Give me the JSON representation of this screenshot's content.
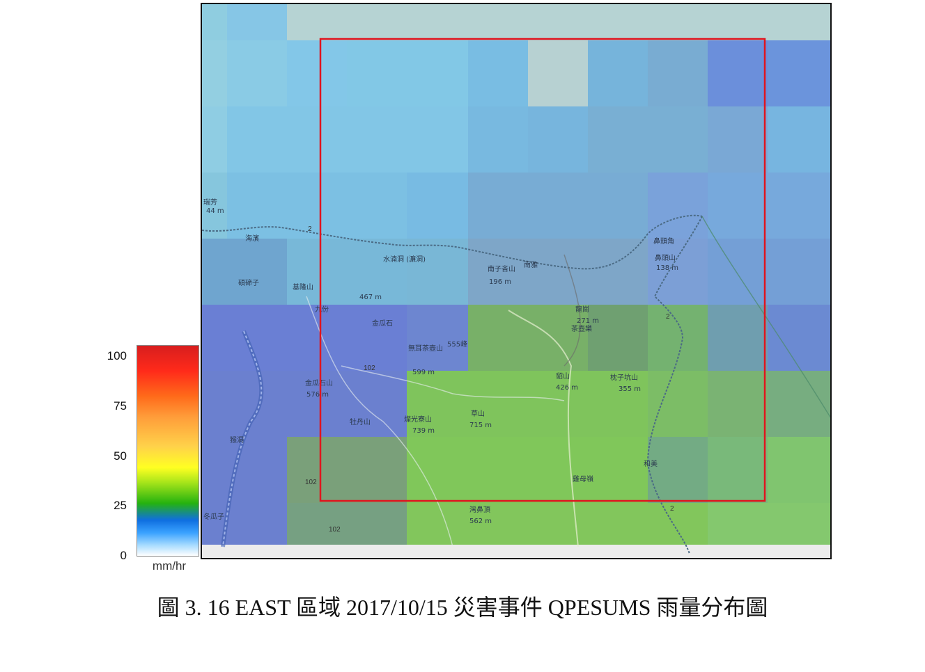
{
  "colorbar": {
    "ticks": [
      "100",
      "75",
      "50",
      "25",
      "0"
    ],
    "unit": "mm/hr"
  },
  "caption": "圖 3. 16 EAST 區域  2017/10/15 災害事件 QPESUMS 雨量分布圖",
  "map": {
    "place_labels": {
      "a": "2",
      "b": "海濱",
      "c": "水湳洞 (濂洞)",
      "d": "南雅",
      "e": "鼻頭角",
      "f": "碩碲子",
      "g": "基隆山",
      "h": "467 m",
      "i": "九份",
      "j": "金瓜石",
      "k": "無耳茶壺山",
      "l": "102",
      "m": "金瓜石山",
      "n": "576 m",
      "o": "牡丹山",
      "p": "燦光寮山",
      "q": "739 m",
      "r": "草山",
      "s": "715 m",
      "t": "和美",
      "u": "雞母嶺",
      "v": "灣鼻頂",
      "w": "562 m",
      "x": "102",
      "y": "102",
      "z": "南子吝山",
      "aa": "196 m",
      "ab": "猴洞",
      "ac": "2",
      "ad": "2",
      "ae": "貂山",
      "af": "426 m",
      "ag": "枕子坑山",
      "ah": "355 m",
      "ai": "鼻頭山",
      "aj": "138 m",
      "ak": "龍崗",
      "al": "271 m",
      "am": "瑞芳",
      "an": "44 m",
      "ao": "555峰",
      "ap": "599 m",
      "aq": "茶壺樂",
      "ar": "冬瓜子"
    }
  }
}
